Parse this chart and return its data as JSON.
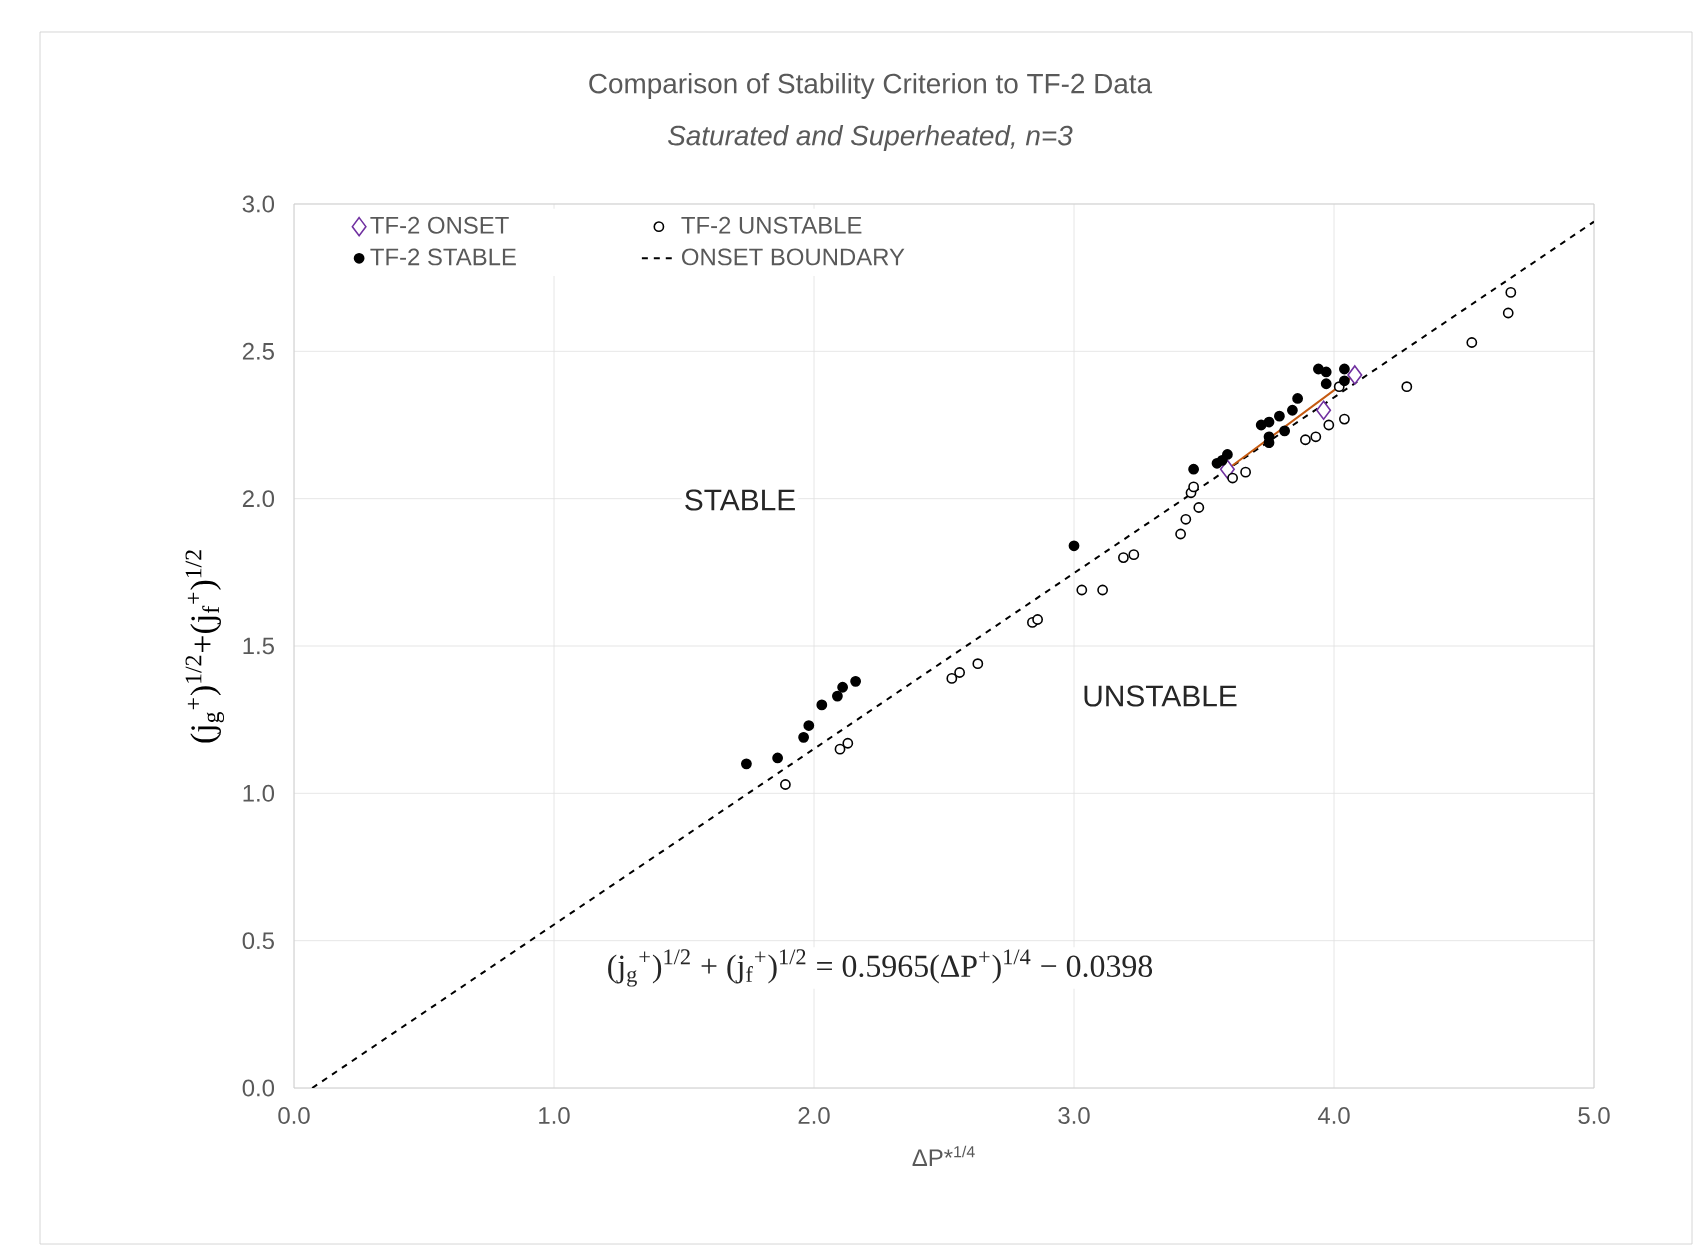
{
  "chart_data": {
    "type": "scatter",
    "title": "Comparison of Stability Criterion to TF-2 Data",
    "subtitle": "*Saturated and Superheated, n=3*",
    "xlabel": "ΔP*$^{1/4}$",
    "ylabel": "(j$_{g}$$^{+}$)$^{1/2}$+(j$_{f}$$^{+}$)$^{1/2}$",
    "xlim": [
      0,
      5
    ],
    "ylim": [
      0,
      3
    ],
    "xticks": [
      {
        "value": 0,
        "label": "0.0"
      },
      {
        "value": 1,
        "label": "1.0"
      },
      {
        "value": 2,
        "label": "2.0"
      },
      {
        "value": 3,
        "label": "3.0"
      },
      {
        "value": 4,
        "label": "4.0"
      },
      {
        "value": 5,
        "label": "5.0"
      }
    ],
    "yticks": [
      {
        "value": 0,
        "label": "0.0"
      },
      {
        "value": 0.5,
        "label": "0.5"
      },
      {
        "value": 1,
        "label": "1.0"
      },
      {
        "value": 1.5,
        "label": "1.5"
      },
      {
        "value": 2,
        "label": "2.0"
      },
      {
        "value": 2.5,
        "label": "2.5"
      },
      {
        "value": 3,
        "label": "3.0"
      }
    ],
    "grid": true,
    "legend": "top left",
    "series": [
      {
        "name": "TF-2 ONSET",
        "color": "#7030a0",
        "marker": "diamond",
        "x": [
          3.59,
          3.96,
          4.08
        ],
        "values": [
          2.1,
          2.3,
          2.42
        ]
      },
      {
        "name": "TF-2 UNSTABLE",
        "color": "#000000",
        "marker": "circle",
        "x": [
          1.89,
          2.1,
          2.13,
          2.53,
          2.56,
          2.63,
          2.84,
          2.86,
          3.03,
          3.11,
          3.19,
          3.23,
          3.41,
          3.43,
          3.48,
          3.45,
          3.46,
          3.61,
          3.66,
          3.89,
          3.93,
          3.98,
          4.04,
          4.02,
          4.28,
          4.53,
          4.67,
          4.68
        ],
        "values": [
          1.03,
          1.15,
          1.17,
          1.39,
          1.41,
          1.44,
          1.58,
          1.59,
          1.69,
          1.69,
          1.8,
          1.81,
          1.88,
          1.93,
          1.97,
          2.02,
          2.04,
          2.07,
          2.09,
          2.2,
          2.21,
          2.25,
          2.27,
          2.38,
          2.38,
          2.53,
          2.63,
          2.7
        ]
      },
      {
        "name": "TF-2 STABLE",
        "color": "#000000",
        "marker": "circle",
        "x": [
          3.94,
          3.97,
          4.04,
          3.97,
          4.04,
          3.86,
          3.84,
          3.72,
          3.75,
          3.79,
          3.81,
          3.75,
          3.75,
          3.57,
          3.59,
          3.55,
          3.46,
          3.0,
          1.74,
          1.86,
          1.96,
          1.98,
          2.03,
          2.09,
          2.11,
          2.16
        ],
        "values": [
          2.44,
          2.43,
          2.44,
          2.39,
          2.4,
          2.34,
          2.3,
          2.25,
          2.26,
          2.28,
          2.23,
          2.21,
          2.19,
          2.13,
          2.15,
          2.12,
          2.1,
          1.84,
          1.1,
          1.12,
          1.19,
          1.23,
          1.3,
          1.33,
          1.36,
          1.38
        ]
      },
      {
        "name": "ONSET BOUNDARY",
        "type": "line",
        "color": "#000000",
        "marker": "none",
        "line_style": "dashed",
        "x": [
          0.07,
          5
        ],
        "values": [
          0,
          2.94
        ]
      },
      {
        "type": "line",
        "color": "#c55a11",
        "marker": "none",
        "line_style": "solid",
        "x": [
          3.59,
          4.08
        ],
        "values": [
          2.1,
          2.42
        ]
      }
    ],
    "annotations": [
      "STABLE",
      "UNSTABLE",
      "(j$_{g}$$^{+}$)$^{1/2}$ + (j$_{f}$$^{+}$)$^{1/2}$ = 0.5965(ΔP$^{+}$)$^{1/4}$ − 0.0398"
    ]
  }
}
